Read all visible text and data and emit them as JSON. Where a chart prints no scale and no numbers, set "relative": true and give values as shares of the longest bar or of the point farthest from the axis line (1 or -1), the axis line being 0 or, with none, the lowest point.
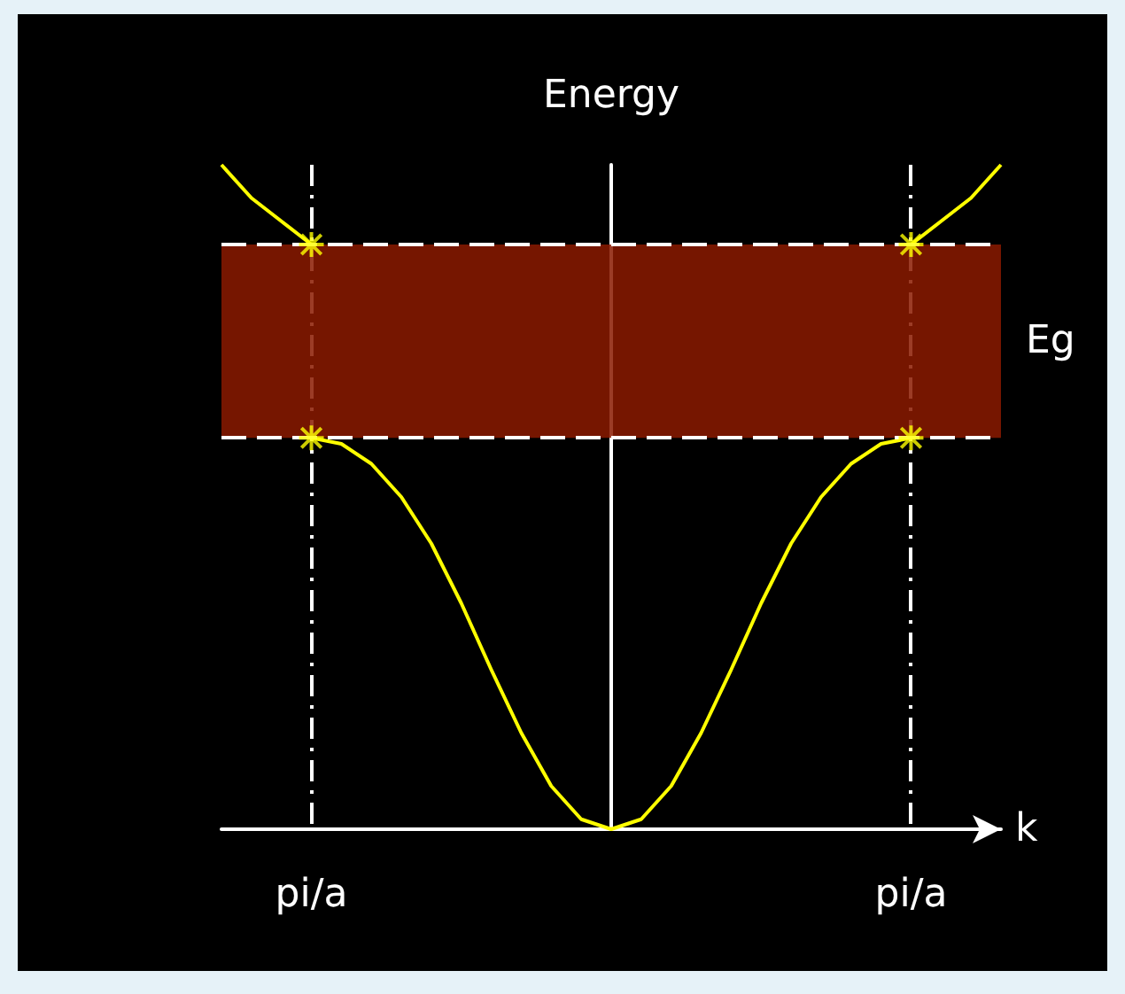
{
  "chart_data": {
    "type": "line",
    "relative": true,
    "xlabel": "k",
    "ylabel": "Energy",
    "marker": "none",
    "grid": "x",
    "categories": [
      null,
      null,
      null,
      "pi/a",
      null,
      null,
      null,
      null,
      null,
      null,
      null,
      null,
      null,
      null,
      null,
      null,
      null,
      null,
      null,
      null,
      null,
      null,
      null,
      "pi/a",
      null,
      null,
      null
    ],
    "series": [
      {
        "color": "#ffff00",
        "values": [
          null,
          null,
          null,
          0.589,
          0.58,
          0.55,
          0.5,
          0.43,
          0.34,
          0.24,
          0.145,
          0.065,
          0.015,
          0,
          0.015,
          0.065,
          0.145,
          0.24,
          0.34,
          0.43,
          0.5,
          0.55,
          0.58,
          0.589,
          null,
          null,
          null
        ]
      },
      {
        "color": "#ffff00",
        "values": [
          1.0,
          0.95,
          0.915,
          0.88,
          null,
          null,
          null,
          null,
          null,
          null,
          null,
          null,
          null,
          null,
          null,
          null,
          null,
          null,
          null,
          null,
          null,
          null,
          null,
          0.88,
          0.915,
          0.95,
          1.0
        ]
      },
      {
        "type": "scatter",
        "marker": "cross",
        "color": "#ffff00",
        "values": [
          null,
          null,
          null,
          0.589,
          null,
          null,
          null,
          null,
          null,
          null,
          null,
          null,
          null,
          null,
          null,
          null,
          null,
          null,
          null,
          null,
          null,
          null,
          null,
          0.589,
          null,
          null,
          null
        ]
      },
      {
        "type": "scatter",
        "marker": "cross",
        "color": "#ffff00",
        "values": [
          null,
          null,
          null,
          0.88,
          null,
          null,
          null,
          null,
          null,
          null,
          null,
          null,
          null,
          null,
          null,
          null,
          null,
          null,
          null,
          null,
          null,
          null,
          null,
          0.88,
          null,
          null,
          null
        ]
      }
    ],
    "bands": [
      {
        "axis": "y",
        "from": 0.589,
        "to": 0.88,
        "label": "Eg",
        "color": "#8b1a00"
      }
    ],
    "ref_lines": [
      {
        "axis": "y",
        "value": 0.589,
        "color": "#ffffff",
        "line_style": "dashed"
      },
      {
        "axis": "y",
        "value": 0.88,
        "color": "#ffffff",
        "line_style": "dashed"
      }
    ]
  }
}
